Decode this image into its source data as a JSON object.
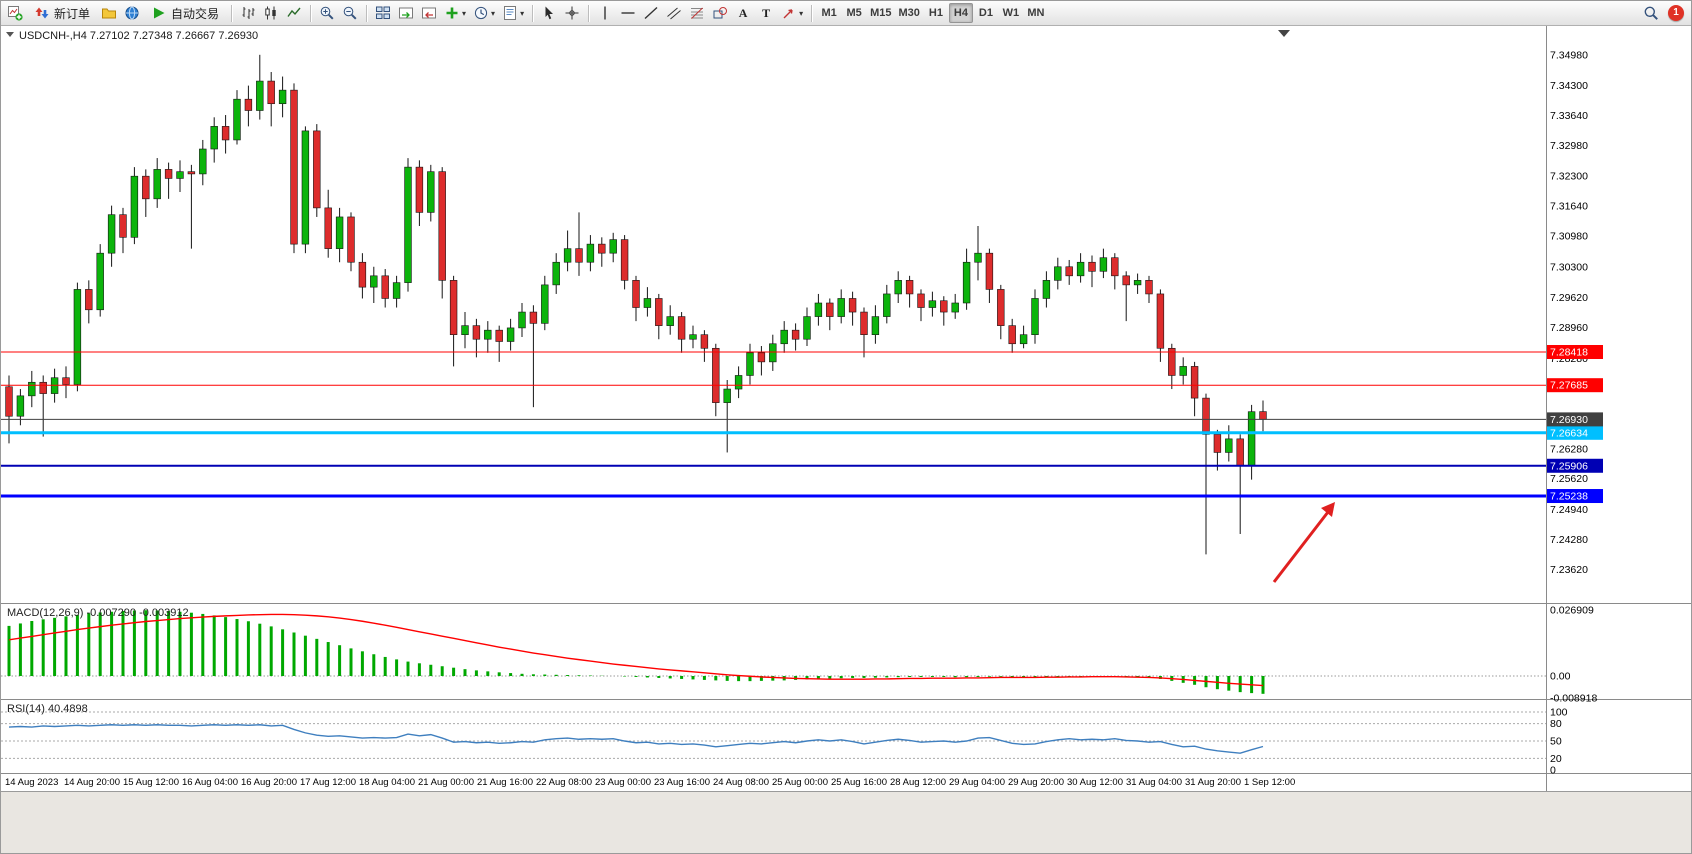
{
  "toolbar": {
    "new_order_label": "新订单",
    "auto_trading_label": "自动交易",
    "text_tool_label": "A",
    "label_tool_label": "T",
    "timeframes": [
      "M1",
      "M5",
      "M15",
      "M30",
      "H1",
      "H4",
      "D1",
      "W1",
      "MN"
    ],
    "active_timeframe": "H4",
    "notification_count": "1"
  },
  "chart": {
    "title": "USDCNH-,H4 7.27102 7.27348 7.26667 7.26930",
    "price_axis": [
      "7.34980",
      "7.34300",
      "7.33640",
      "7.32980",
      "7.32300",
      "7.31640",
      "7.30980",
      "7.30300",
      "7.29620",
      "7.28960",
      "7.28280",
      "7.27620",
      "7.26960",
      "7.26280",
      "7.25620",
      "7.24940",
      "7.24280",
      "7.23620"
    ],
    "levels": [
      {
        "label": "7.28418",
        "price": 7.28418,
        "color": "#ff0000",
        "line_width": 1
      },
      {
        "label": "7.27685",
        "price": 7.27685,
        "color": "#ff0000",
        "line_width": 1
      },
      {
        "label": "7.26634",
        "price": 7.26634,
        "color": "#00bfff",
        "line_width": 3
      },
      {
        "label": "7.25906",
        "price": 7.25906,
        "color": "#0000b4",
        "line_width": 2
      },
      {
        "label": "7.25238",
        "price": 7.25238,
        "color": "#0000ff",
        "line_width": 3
      }
    ],
    "current_price": {
      "label": "7.26930",
      "price": 7.2693,
      "color": "#404040"
    },
    "colors": {
      "up": "#0cb40c",
      "down": "#dd2c2c",
      "wick": "#151515"
    },
    "candles": [
      [
        7.2765,
        7.279,
        7.264,
        7.27
      ],
      [
        7.27,
        7.276,
        7.268,
        7.2745
      ],
      [
        7.2745,
        7.28,
        7.272,
        7.2775
      ],
      [
        7.2775,
        7.279,
        7.2655,
        7.275
      ],
      [
        7.275,
        7.2805,
        7.273,
        7.2785
      ],
      [
        7.2785,
        7.281,
        7.274,
        7.277
      ],
      [
        7.277,
        7.2995,
        7.2755,
        7.298
      ],
      [
        7.298,
        7.3,
        7.2905,
        7.2935
      ],
      [
        7.2935,
        7.308,
        7.292,
        7.306
      ],
      [
        7.306,
        7.3165,
        7.303,
        7.3145
      ],
      [
        7.3145,
        7.316,
        7.306,
        7.3095
      ],
      [
        7.3095,
        7.325,
        7.308,
        7.323
      ],
      [
        7.323,
        7.3245,
        7.314,
        7.318
      ],
      [
        7.318,
        7.327,
        7.316,
        7.3245
      ],
      [
        7.3245,
        7.326,
        7.318,
        7.3225
      ],
      [
        7.3225,
        7.3265,
        7.3195,
        7.324
      ],
      [
        7.324,
        7.3255,
        7.307,
        7.3235
      ],
      [
        7.3235,
        7.331,
        7.321,
        7.329
      ],
      [
        7.329,
        7.336,
        7.326,
        7.334
      ],
      [
        7.334,
        7.3365,
        7.328,
        7.331
      ],
      [
        7.331,
        7.342,
        7.33,
        7.34
      ],
      [
        7.34,
        7.343,
        7.334,
        7.3375
      ],
      [
        7.3375,
        7.3498,
        7.3355,
        7.344
      ],
      [
        7.344,
        7.346,
        7.334,
        7.339
      ],
      [
        7.339,
        7.345,
        7.336,
        7.342
      ],
      [
        7.342,
        7.3435,
        7.306,
        7.308
      ],
      [
        7.308,
        7.334,
        7.306,
        7.333
      ],
      [
        7.333,
        7.3345,
        7.314,
        7.316
      ],
      [
        7.316,
        7.32,
        7.305,
        7.307
      ],
      [
        7.307,
        7.316,
        7.304,
        7.314
      ],
      [
        7.314,
        7.315,
        7.302,
        7.304
      ],
      [
        7.304,
        7.306,
        7.296,
        7.2985
      ],
      [
        7.2985,
        7.303,
        7.295,
        7.301
      ],
      [
        7.301,
        7.3025,
        7.294,
        7.296
      ],
      [
        7.296,
        7.301,
        7.294,
        7.2995
      ],
      [
        7.2995,
        7.327,
        7.2975,
        7.325
      ],
      [
        7.325,
        7.3265,
        7.312,
        7.315
      ],
      [
        7.315,
        7.3255,
        7.313,
        7.324
      ],
      [
        7.324,
        7.325,
        7.296,
        7.3
      ],
      [
        7.3,
        7.301,
        7.281,
        7.288
      ],
      [
        7.288,
        7.293,
        7.285,
        7.29
      ],
      [
        7.29,
        7.2915,
        7.283,
        7.287
      ],
      [
        7.287,
        7.291,
        7.284,
        7.289
      ],
      [
        7.289,
        7.29,
        7.282,
        7.2865
      ],
      [
        7.2865,
        7.2915,
        7.2845,
        7.2895
      ],
      [
        7.2895,
        7.295,
        7.2875,
        7.293
      ],
      [
        7.293,
        7.2945,
        7.272,
        7.2905
      ],
      [
        7.2905,
        7.301,
        7.289,
        7.299
      ],
      [
        7.299,
        7.306,
        7.297,
        7.304
      ],
      [
        7.304,
        7.311,
        7.302,
        7.307
      ],
      [
        7.307,
        7.315,
        7.301,
        7.304
      ],
      [
        7.304,
        7.31,
        7.302,
        7.308
      ],
      [
        7.308,
        7.3095,
        7.303,
        7.306
      ],
      [
        7.306,
        7.3105,
        7.304,
        7.309
      ],
      [
        7.309,
        7.31,
        7.298,
        7.3
      ],
      [
        7.3,
        7.301,
        7.291,
        7.294
      ],
      [
        7.294,
        7.2985,
        7.292,
        7.296
      ],
      [
        7.296,
        7.297,
        7.287,
        7.29
      ],
      [
        7.29,
        7.2945,
        7.288,
        7.292
      ],
      [
        7.292,
        7.293,
        7.284,
        7.287
      ],
      [
        7.287,
        7.29,
        7.285,
        7.288
      ],
      [
        7.288,
        7.289,
        7.282,
        7.285
      ],
      [
        7.285,
        7.286,
        7.27,
        7.273
      ],
      [
        7.273,
        7.278,
        7.262,
        7.276
      ],
      [
        7.276,
        7.281,
        7.274,
        7.279
      ],
      [
        7.279,
        7.286,
        7.277,
        7.284
      ],
      [
        7.284,
        7.2855,
        7.279,
        7.282
      ],
      [
        7.282,
        7.288,
        7.28,
        7.286
      ],
      [
        7.286,
        7.291,
        7.284,
        7.289
      ],
      [
        7.289,
        7.2905,
        7.2845,
        7.287
      ],
      [
        7.287,
        7.294,
        7.2855,
        7.292
      ],
      [
        7.292,
        7.297,
        7.29,
        7.295
      ],
      [
        7.295,
        7.296,
        7.289,
        7.292
      ],
      [
        7.292,
        7.298,
        7.2905,
        7.296
      ],
      [
        7.296,
        7.2975,
        7.29,
        7.293
      ],
      [
        7.293,
        7.294,
        7.283,
        7.288
      ],
      [
        7.288,
        7.2945,
        7.286,
        7.292
      ],
      [
        7.292,
        7.299,
        7.2905,
        7.297
      ],
      [
        7.297,
        7.302,
        7.295,
        7.3
      ],
      [
        7.3,
        7.301,
        7.294,
        7.297
      ],
      [
        7.297,
        7.298,
        7.291,
        7.294
      ],
      [
        7.294,
        7.2975,
        7.292,
        7.2955
      ],
      [
        7.2955,
        7.2965,
        7.29,
        7.293
      ],
      [
        7.293,
        7.297,
        7.2915,
        7.295
      ],
      [
        7.295,
        7.307,
        7.2935,
        7.304
      ],
      [
        7.304,
        7.312,
        7.3,
        7.306
      ],
      [
        7.306,
        7.307,
        7.295,
        7.298
      ],
      [
        7.298,
        7.299,
        7.287,
        7.29
      ],
      [
        7.29,
        7.2915,
        7.284,
        7.286
      ],
      [
        7.286,
        7.29,
        7.285,
        7.288
      ],
      [
        7.288,
        7.298,
        7.286,
        7.296
      ],
      [
        7.296,
        7.302,
        7.294,
        7.3
      ],
      [
        7.3,
        7.305,
        7.298,
        7.303
      ],
      [
        7.303,
        7.3045,
        7.299,
        7.301
      ],
      [
        7.301,
        7.306,
        7.2995,
        7.304
      ],
      [
        7.304,
        7.3055,
        7.2985,
        7.302
      ],
      [
        7.302,
        7.307,
        7.3005,
        7.305
      ],
      [
        7.305,
        7.306,
        7.298,
        7.301
      ],
      [
        7.301,
        7.302,
        7.291,
        7.299
      ],
      [
        7.299,
        7.3015,
        7.297,
        7.3
      ],
      [
        7.3,
        7.301,
        7.295,
        7.297
      ],
      [
        7.297,
        7.298,
        7.282,
        7.285
      ],
      [
        7.285,
        7.286,
        7.276,
        7.279
      ],
      [
        7.279,
        7.283,
        7.277,
        7.281
      ],
      [
        7.281,
        7.282,
        7.27,
        7.274
      ],
      [
        7.274,
        7.275,
        7.2395,
        7.266
      ],
      [
        7.266,
        7.267,
        7.258,
        7.262
      ],
      [
        7.262,
        7.268,
        7.26,
        7.265
      ],
      [
        7.265,
        7.266,
        7.244,
        7.259
      ],
      [
        7.259,
        7.2725,
        7.256,
        7.271
      ],
      [
        7.27102,
        7.27348,
        7.26667,
        7.2693
      ]
    ],
    "time_axis": [
      "14 Aug 2023",
      "14 Aug 20:00",
      "15 Aug 12:00",
      "16 Aug 04:00",
      "16 Aug 20:00",
      "17 Aug 12:00",
      "18 Aug 04:00",
      "21 Aug 00:00",
      "21 Aug 16:00",
      "22 Aug 08:00",
      "23 Aug 00:00",
      "23 Aug 16:00",
      "24 Aug 08:00",
      "25 Aug 00:00",
      "25 Aug 16:00",
      "28 Aug 12:00",
      "29 Aug 04:00",
      "29 Aug 20:00",
      "30 Aug 12:00",
      "31 Aug 04:00",
      "31 Aug 20:00",
      "1 Sep 12:00"
    ]
  },
  "macd": {
    "label": "MACD(12,26,9) -0.007290 -0.003912",
    "axis": [
      "0.026909",
      "0.00",
      "-0.008918"
    ],
    "axis_values": [
      0.026909,
      0,
      -0.008918
    ],
    "histogram_color": "#00a800",
    "signal_color": "#ff0000",
    "histogram": [
      0.0205,
      0.0215,
      0.0225,
      0.0232,
      0.0238,
      0.0244,
      0.025,
      0.0256,
      0.026,
      0.0263,
      0.0266,
      0.0268,
      0.0269,
      0.0268,
      0.0266,
      0.0263,
      0.0259,
      0.0254,
      0.0248,
      0.0241,
      0.0233,
      0.0224,
      0.0214,
      0.0203,
      0.0191,
      0.0178,
      0.0165,
      0.0152,
      0.0139,
      0.0126,
      0.0113,
      0.0101,
      0.0089,
      0.0078,
      0.0068,
      0.0059,
      0.0052,
      0.0046,
      0.004,
      0.0034,
      0.0028,
      0.0023,
      0.0019,
      0.0015,
      0.0012,
      0.0009,
      0.0007,
      0.0006,
      0.0005,
      0.0004,
      0.0003,
      0.0002,
      0.0001,
      0.0,
      -0.0002,
      -0.0004,
      -0.0006,
      -0.0008,
      -0.001,
      -0.0012,
      -0.0014,
      -0.0016,
      -0.0018,
      -0.002,
      -0.0021,
      -0.0021,
      -0.002,
      -0.0019,
      -0.0018,
      -0.0016,
      -0.0014,
      -0.0012,
      -0.001,
      -0.0009,
      -0.0008,
      -0.0008,
      -0.0007,
      -0.0006,
      -0.0005,
      -0.0004,
      -0.0004,
      -0.0004,
      -0.0004,
      -0.0005,
      -0.0005,
      -0.0004,
      -0.0003,
      -0.0003,
      -0.0004,
      -0.0005,
      -0.0005,
      -0.0004,
      -0.0003,
      -0.0002,
      -0.0002,
      -0.0001,
      -0.0001,
      -0.0002,
      -0.0003,
      -0.0004,
      -0.0006,
      -0.0012,
      -0.002,
      -0.0028,
      -0.0036,
      -0.0046,
      -0.0054,
      -0.006,
      -0.0066,
      -0.007,
      -0.00729
    ],
    "signal": [
      0.0148,
      0.0155,
      0.0162,
      0.0169,
      0.0176,
      0.0183,
      0.019,
      0.0196,
      0.0202,
      0.0208,
      0.0213,
      0.0218,
      0.0223,
      0.0227,
      0.0231,
      0.0235,
      0.0238,
      0.0241,
      0.0244,
      0.0246,
      0.0248,
      0.025,
      0.0251,
      0.0252,
      0.0252,
      0.0251,
      0.0249,
      0.0246,
      0.0242,
      0.0237,
      0.0231,
      0.0224,
      0.0216,
      0.0208,
      0.0199,
      0.019,
      0.0181,
      0.0172,
      0.0163,
      0.0154,
      0.0145,
      0.0136,
      0.0127,
      0.0118,
      0.011,
      0.0102,
      0.0094,
      0.0087,
      0.008,
      0.0073,
      0.0067,
      0.0061,
      0.0055,
      0.0049,
      0.0044,
      0.0039,
      0.0034,
      0.0029,
      0.0025,
      0.0021,
      0.0017,
      0.0013,
      0.0009,
      0.0005,
      0.0002,
      -0.0001,
      -0.0004,
      -0.0006,
      -0.0008,
      -0.001,
      -0.0011,
      -0.0012,
      -0.0013,
      -0.0013,
      -0.0013,
      -0.0013,
      -0.0012,
      -0.0012,
      -0.0011,
      -0.001,
      -0.001,
      -0.0009,
      -0.0009,
      -0.0009,
      -0.0008,
      -0.0008,
      -0.0007,
      -0.0006,
      -0.0006,
      -0.0006,
      -0.0006,
      -0.0005,
      -0.0005,
      -0.0004,
      -0.0004,
      -0.0003,
      -0.0003,
      -0.0003,
      -0.0004,
      -0.0005,
      -0.0006,
      -0.0008,
      -0.0011,
      -0.0014,
      -0.0018,
      -0.0022,
      -0.0026,
      -0.003,
      -0.0033,
      -0.0036,
      -0.0039
    ]
  },
  "rsi": {
    "label": "RSI(14) 40.4898",
    "axis": [
      "100",
      "80",
      "50",
      "20",
      "0"
    ],
    "levels": [
      100,
      80,
      50,
      20
    ],
    "line_color": "#3f7fbf",
    "values": [
      74,
      75,
      74,
      76,
      75,
      76,
      77,
      76,
      77,
      78,
      77,
      78,
      77,
      78,
      77,
      77,
      76,
      77,
      78,
      77,
      78,
      77,
      78,
      76,
      77,
      70,
      64,
      60,
      58,
      59,
      57,
      55,
      56,
      55,
      56,
      62,
      59,
      61,
      55,
      48,
      49,
      47,
      48,
      46,
      47,
      49,
      48,
      52,
      54,
      55,
      53,
      54,
      53,
      54,
      50,
      47,
      48,
      45,
      46,
      44,
      45,
      43,
      40,
      42,
      44,
      46,
      45,
      47,
      49,
      47,
      50,
      52,
      50,
      52,
      49,
      45,
      48,
      51,
      53,
      51,
      48,
      49,
      50,
      48,
      50,
      55,
      56,
      51,
      46,
      44,
      45,
      49,
      52,
      54,
      52,
      53,
      52,
      54,
      51,
      50,
      48,
      49,
      44,
      40,
      41,
      36,
      33,
      31,
      29,
      35,
      40.5
    ]
  },
  "annotation": {
    "type": "arrow",
    "color": "#e02020"
  }
}
